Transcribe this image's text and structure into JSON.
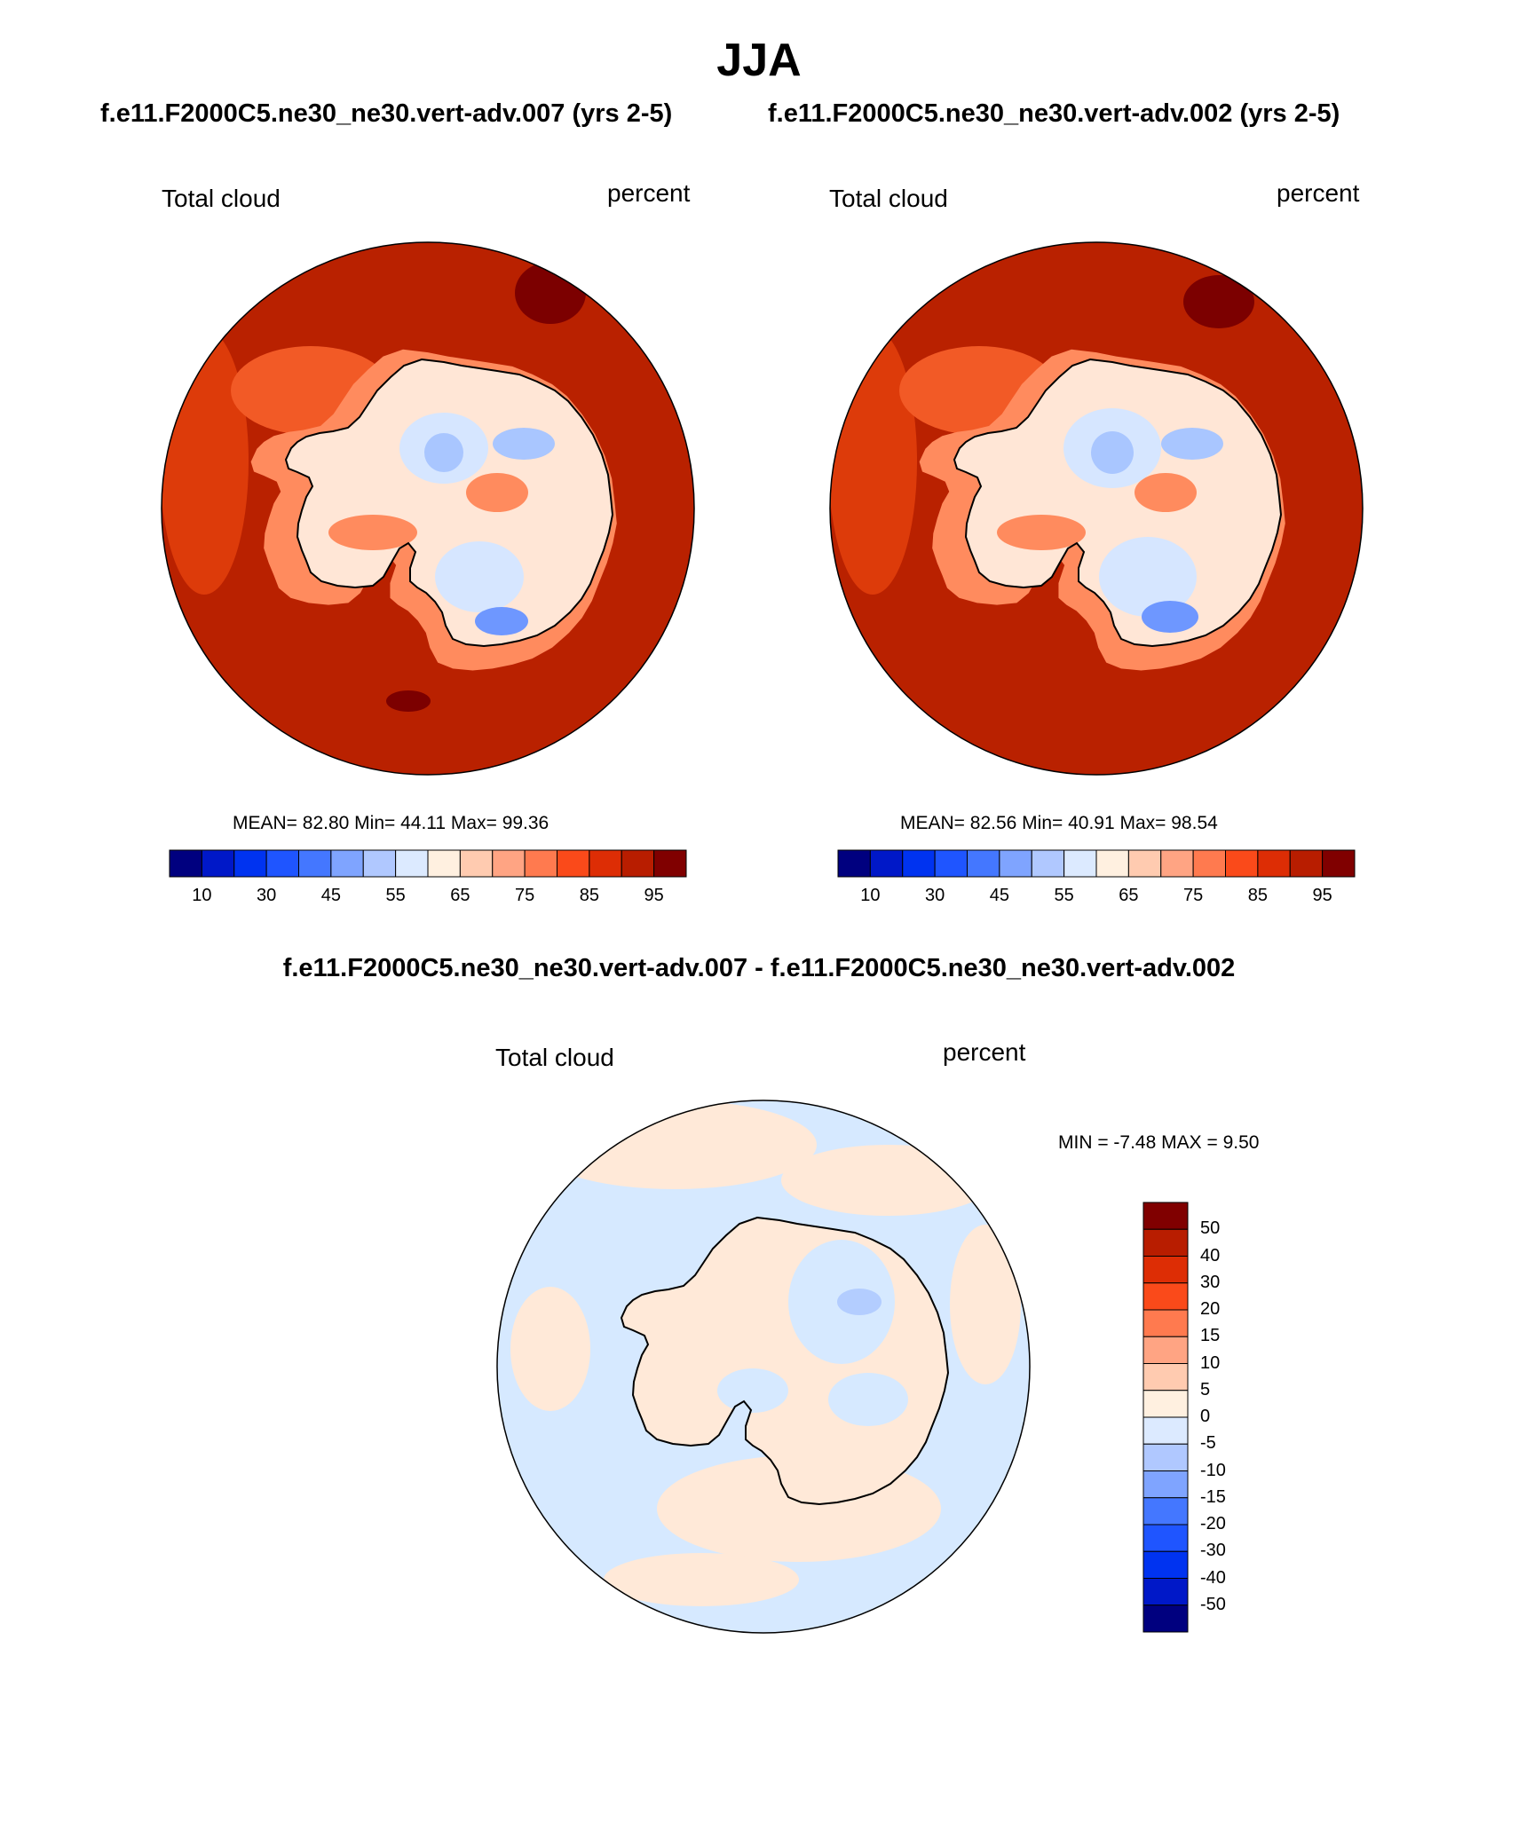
{
  "title": "JJA",
  "case_left": "f.e11.F2000C5.ne30_ne30.vert-adv.007 (yrs 2-5)",
  "case_right": "f.e11.F2000C5.ne30_ne30.vert-adv.002 (yrs 2-5)",
  "diff_title": "f.e11.F2000C5.ne30_ne30.vert-adv.007 - f.e11.F2000C5.ne30_ne30.vert-adv.002",
  "panels": [
    {
      "variable": "Total cloud",
      "units": "percent",
      "stats": "MEAN=  82.80  Min=  44.11  Max=  99.36"
    },
    {
      "variable": "Total cloud",
      "units": "percent",
      "stats": "MEAN=  82.56  Min=  40.91  Max=  98.54"
    },
    {
      "variable": "Total cloud",
      "units": "percent",
      "stats": "MIN =  -7.48 MAX =   9.50"
    }
  ],
  "colorbar_abs": {
    "labels": [
      "10",
      "30",
      "45",
      "55",
      "65",
      "75",
      "85",
      "95"
    ],
    "colors": [
      "#00007f",
      "#0018c8",
      "#0033f0",
      "#1f55ff",
      "#4477ff",
      "#7fa4ff",
      "#b0c8ff",
      "#dceaff",
      "#fff0e0",
      "#ffcbb0",
      "#ffa483",
      "#ff7a4f",
      "#fa4a1a",
      "#dd2d05",
      "#b81d00",
      "#800000"
    ]
  },
  "colorbar_diff": {
    "labels": [
      "50",
      "40",
      "30",
      "20",
      "15",
      "10",
      "5",
      "0",
      "-5",
      "-10",
      "-15",
      "-20",
      "-30",
      "-40",
      "-50"
    ],
    "colors": [
      "#800000",
      "#b81d00",
      "#dd2d05",
      "#fa4a1a",
      "#ff7a4f",
      "#ffa483",
      "#ffcbb0",
      "#fff0e0",
      "#dceaff",
      "#b0c8ff",
      "#7fa4ff",
      "#4477ff",
      "#1f55ff",
      "#0033f0",
      "#0018c8",
      "#00007f"
    ]
  },
  "field_colors": {
    "ocean": "#b92100",
    "ocean_light": "#dd3b0a",
    "coast_band": "#f25a26",
    "coast_band2": "#ff8b5e",
    "ice_light": "#ffe6d6",
    "ice_pale": "#ffd0b8",
    "ice_blue": "#d6e6ff",
    "ice_blue2": "#a9c6ff",
    "ice_blue3": "#6e97ff",
    "deep_red": "#7c0000",
    "diff_blue": "#d6e9ff",
    "diff_peach": "#ffe9d8",
    "diff_blue2": "#b3cdff"
  }
}
